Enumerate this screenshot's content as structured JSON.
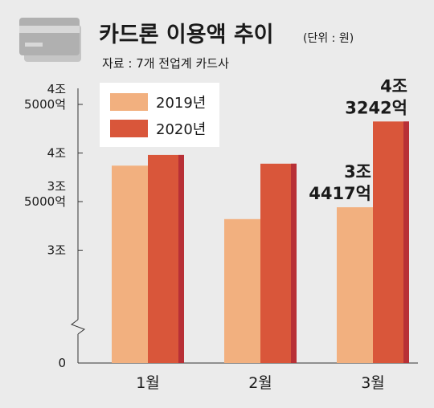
{
  "header": {
    "title": "카드론 이용액 추이",
    "unit": "(단위 : 원)",
    "source": "자료 : 7개 전업계 카드사",
    "card_icon": "credit-card-icon"
  },
  "chart_data": {
    "type": "bar",
    "title": "카드론 이용액 추이",
    "unit_note": "(단위 : 원)",
    "categories": [
      "1월",
      "2월",
      "3월"
    ],
    "series": [
      {
        "name": "2019년",
        "color": "#f2b07f",
        "values": [
          38700,
          33200,
          34417
        ]
      },
      {
        "name": "2020년",
        "color": "#d9563a",
        "values": [
          39800,
          38900,
          43242
        ]
      }
    ],
    "y_ticks": [
      {
        "value": 30000,
        "lines": [
          "3조"
        ]
      },
      {
        "value": 35000,
        "lines": [
          "3조",
          "5000억"
        ]
      },
      {
        "value": 40000,
        "lines": [
          "4조"
        ]
      },
      {
        "value": 45000,
        "lines": [
          "4조",
          "5000억"
        ]
      }
    ],
    "y_zero_label": "0",
    "y_axis_break": true,
    "ylim": [
      25000,
      45000
    ],
    "ylabel": "",
    "xlabel": "",
    "grid": false,
    "legend_position": "top-left",
    "annotations": [
      {
        "series": 0,
        "category": 2,
        "lines": [
          "3조",
          "4417억"
        ]
      },
      {
        "series": 1,
        "category": 2,
        "lines": [
          "4조",
          "3242억"
        ]
      }
    ]
  }
}
